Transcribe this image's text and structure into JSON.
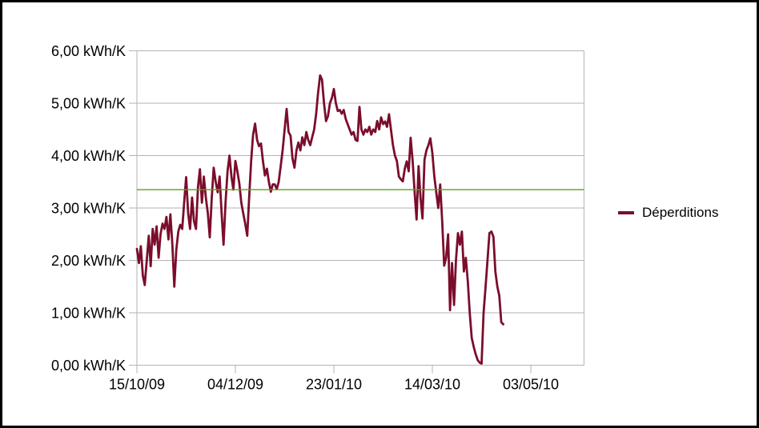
{
  "window": {
    "background_color": "#ffffff",
    "border_color": "#000000"
  },
  "legend": {
    "label": "Déperditions",
    "marker_color": "#7b0d2b"
  },
  "colors": {
    "grid": "#b3b3b3",
    "axis": "#b3b3b3",
    "text": "#000000",
    "series": "#7b0d2b",
    "reference": "#5c9e26"
  },
  "chart_data": {
    "type": "line",
    "title": "",
    "xlabel": "",
    "ylabel": "",
    "grid": true,
    "legend_position": "right",
    "y_axis": {
      "unit": "kWh/K",
      "ylim": [
        0,
        6
      ],
      "tick_values": [
        0,
        1,
        2,
        3,
        4,
        5,
        6
      ],
      "tick_labels": [
        "0,00 kWh/K",
        "1,00 kWh/K",
        "2,00 kWh/K",
        "3,00 kWh/K",
        "4,00 kWh/K",
        "5,00 kWh/K",
        "6,00 kWh/K"
      ]
    },
    "x_axis": {
      "xlim_days": [
        0,
        227
      ],
      "tick_days": [
        0,
        50,
        100,
        150,
        200
      ],
      "tick_labels": [
        "15/10/09",
        "04/12/09",
        "23/01/10",
        "14/03/10",
        "03/05/10"
      ]
    },
    "reference_line": {
      "value": 3.35,
      "color": "#5c9e26"
    },
    "series": [
      {
        "name": "Déperditions",
        "color": "#7b0d2b",
        "start_day": 0,
        "step_days": 1,
        "values": [
          2.22,
          1.95,
          2.27,
          1.71,
          1.53,
          2.0,
          2.47,
          1.89,
          2.6,
          2.3,
          2.65,
          2.05,
          2.5,
          2.7,
          2.6,
          2.83,
          2.4,
          2.88,
          2.3,
          1.5,
          2.2,
          2.55,
          2.68,
          2.6,
          3.1,
          3.59,
          2.9,
          2.6,
          3.2,
          2.75,
          2.6,
          3.4,
          3.74,
          3.1,
          3.6,
          3.2,
          2.9,
          2.44,
          3.2,
          3.77,
          3.5,
          3.3,
          3.6,
          2.9,
          2.3,
          3.1,
          3.7,
          4.0,
          3.6,
          3.35,
          3.9,
          3.7,
          3.47,
          3.1,
          2.9,
          2.7,
          2.47,
          3.2,
          3.9,
          4.4,
          4.61,
          4.3,
          4.18,
          4.23,
          3.9,
          3.62,
          3.75,
          3.5,
          3.31,
          3.45,
          3.45,
          3.36,
          3.5,
          3.8,
          4.1,
          4.5,
          4.89,
          4.45,
          4.38,
          3.95,
          3.77,
          4.1,
          4.25,
          4.1,
          4.35,
          4.2,
          4.45,
          4.3,
          4.2,
          4.35,
          4.5,
          4.8,
          5.2,
          5.53,
          5.45,
          5.0,
          4.66,
          4.75,
          5.0,
          5.1,
          5.27,
          5.0,
          4.85,
          4.87,
          4.8,
          4.87,
          4.7,
          4.6,
          4.5,
          4.4,
          4.45,
          4.3,
          4.28,
          4.93,
          4.5,
          4.4,
          4.5,
          4.45,
          4.55,
          4.4,
          4.5,
          4.45,
          4.66,
          4.5,
          4.73,
          4.6,
          4.65,
          4.55,
          4.79,
          4.5,
          4.2,
          4.0,
          3.9,
          3.6,
          3.55,
          3.51,
          3.75,
          3.89,
          3.7,
          4.34,
          3.9,
          3.3,
          2.78,
          3.8,
          3.2,
          2.8,
          3.92,
          4.1,
          4.2,
          4.33,
          4.05,
          3.6,
          3.3,
          3.0,
          3.45,
          2.75,
          1.9,
          2.05,
          2.5,
          1.05,
          1.95,
          1.15,
          2.0,
          2.52,
          2.3,
          2.55,
          1.79,
          2.05,
          1.6,
          1.0,
          0.52,
          0.35,
          0.21,
          0.1,
          0.05,
          0.03,
          1.0,
          1.48,
          2.0,
          2.52,
          2.55,
          2.45,
          1.79,
          1.5,
          1.33,
          0.82,
          0.78
        ]
      }
    ]
  }
}
